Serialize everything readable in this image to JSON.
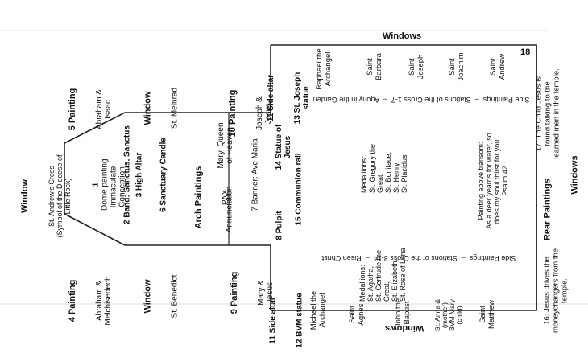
{
  "windows_top": "Windows",
  "windows_bottom_rot": "Windows",
  "windows_right": "Windows",
  "left": {
    "window_title": "Window",
    "window_sub": "St. Andrew's Cross\n(Symbol of the Diocese of\nLittle Rock)",
    "painting4_num": "4 Painting",
    "painting4_text": "Abraham &\nMelchisedech",
    "painting5_num": "5 Painting",
    "painting5_text": "Abraham &\nIsaac",
    "window_benedict_title": "Window",
    "window_benedict": "St. Benedict",
    "window_meinrad_title": "Window",
    "window_meinrad": "St. Meinrad"
  },
  "sanctuary": {
    "item1_num": "1",
    "item1": "Dome painting\nImmaculate\nConception",
    "item2": "2 Band: Sanctus, Sanctus",
    "item3": "3 High Altar",
    "item6": "6 Sanctuary Candle",
    "arch_title": "Arch Paintings",
    "arch_sub": "PAX",
    "annunciation": "Annunciation",
    "mary_queen": "Mary, Queen\nof Heaven",
    "banner": "7 Banner: Ave Maria",
    "painting9_num": "9 Painting",
    "painting9_text": "Mary &\nJesus",
    "painting10_num": "10 Painting",
    "painting10_text": "Joseph &\nJesus"
  },
  "nave": {
    "item8": "8 Pulpit",
    "item14": "14 Statue of\nJesus",
    "item15": "15 Communion rail",
    "item11a": "11 Side altar",
    "item12": "12 BVM statue",
    "item11b": "11 Side altar",
    "item13": "13 St. Joseph\nstatue",
    "medallions_left": "Medallions:\nSt. Agatha,\nSt. Gertrude the\nGreat,\nSt. Elizabeth,\nSt. Rose of Lima",
    "medallions_right": "Medallions:\nSt. Gregory the\nGreat,\nSt. Boniface,\nSt. Henry,\nSt. Placidus",
    "transom": "Painting above transom:\nAs a deer yearns for water, so\ndoes my soul thirst for you.\nPsalm 42",
    "stations_left": "Side Paintings  –  Stations of the Cross 8-14  –  Risen Christ",
    "stations_right": "Side Paintings  –  Stations of the Cross 1-7  –  Agony in the Garden",
    "rear_paintings": "Rear Paintings",
    "item16": "16: Jesus drives the\nmoneychangers from the\ntemple.",
    "item17": "17: The Child Jesus is\nfound talking to the\nlearned men in the temple.",
    "item18": "18"
  },
  "windows_left_side": [
    "Michael the\nArchangel",
    "Saint\nAgnes",
    "John the\nBaptist",
    "St. Anna &\n(mother)\nBVM Mary\n(child)",
    "Saint\nMatthew"
  ],
  "windows_right_side": [
    "Raphael the\nArchangel",
    "Saint\nBarbara",
    "Saint\nJoseph",
    "Saint\nJoachim",
    "Saint\nAndrew"
  ]
}
